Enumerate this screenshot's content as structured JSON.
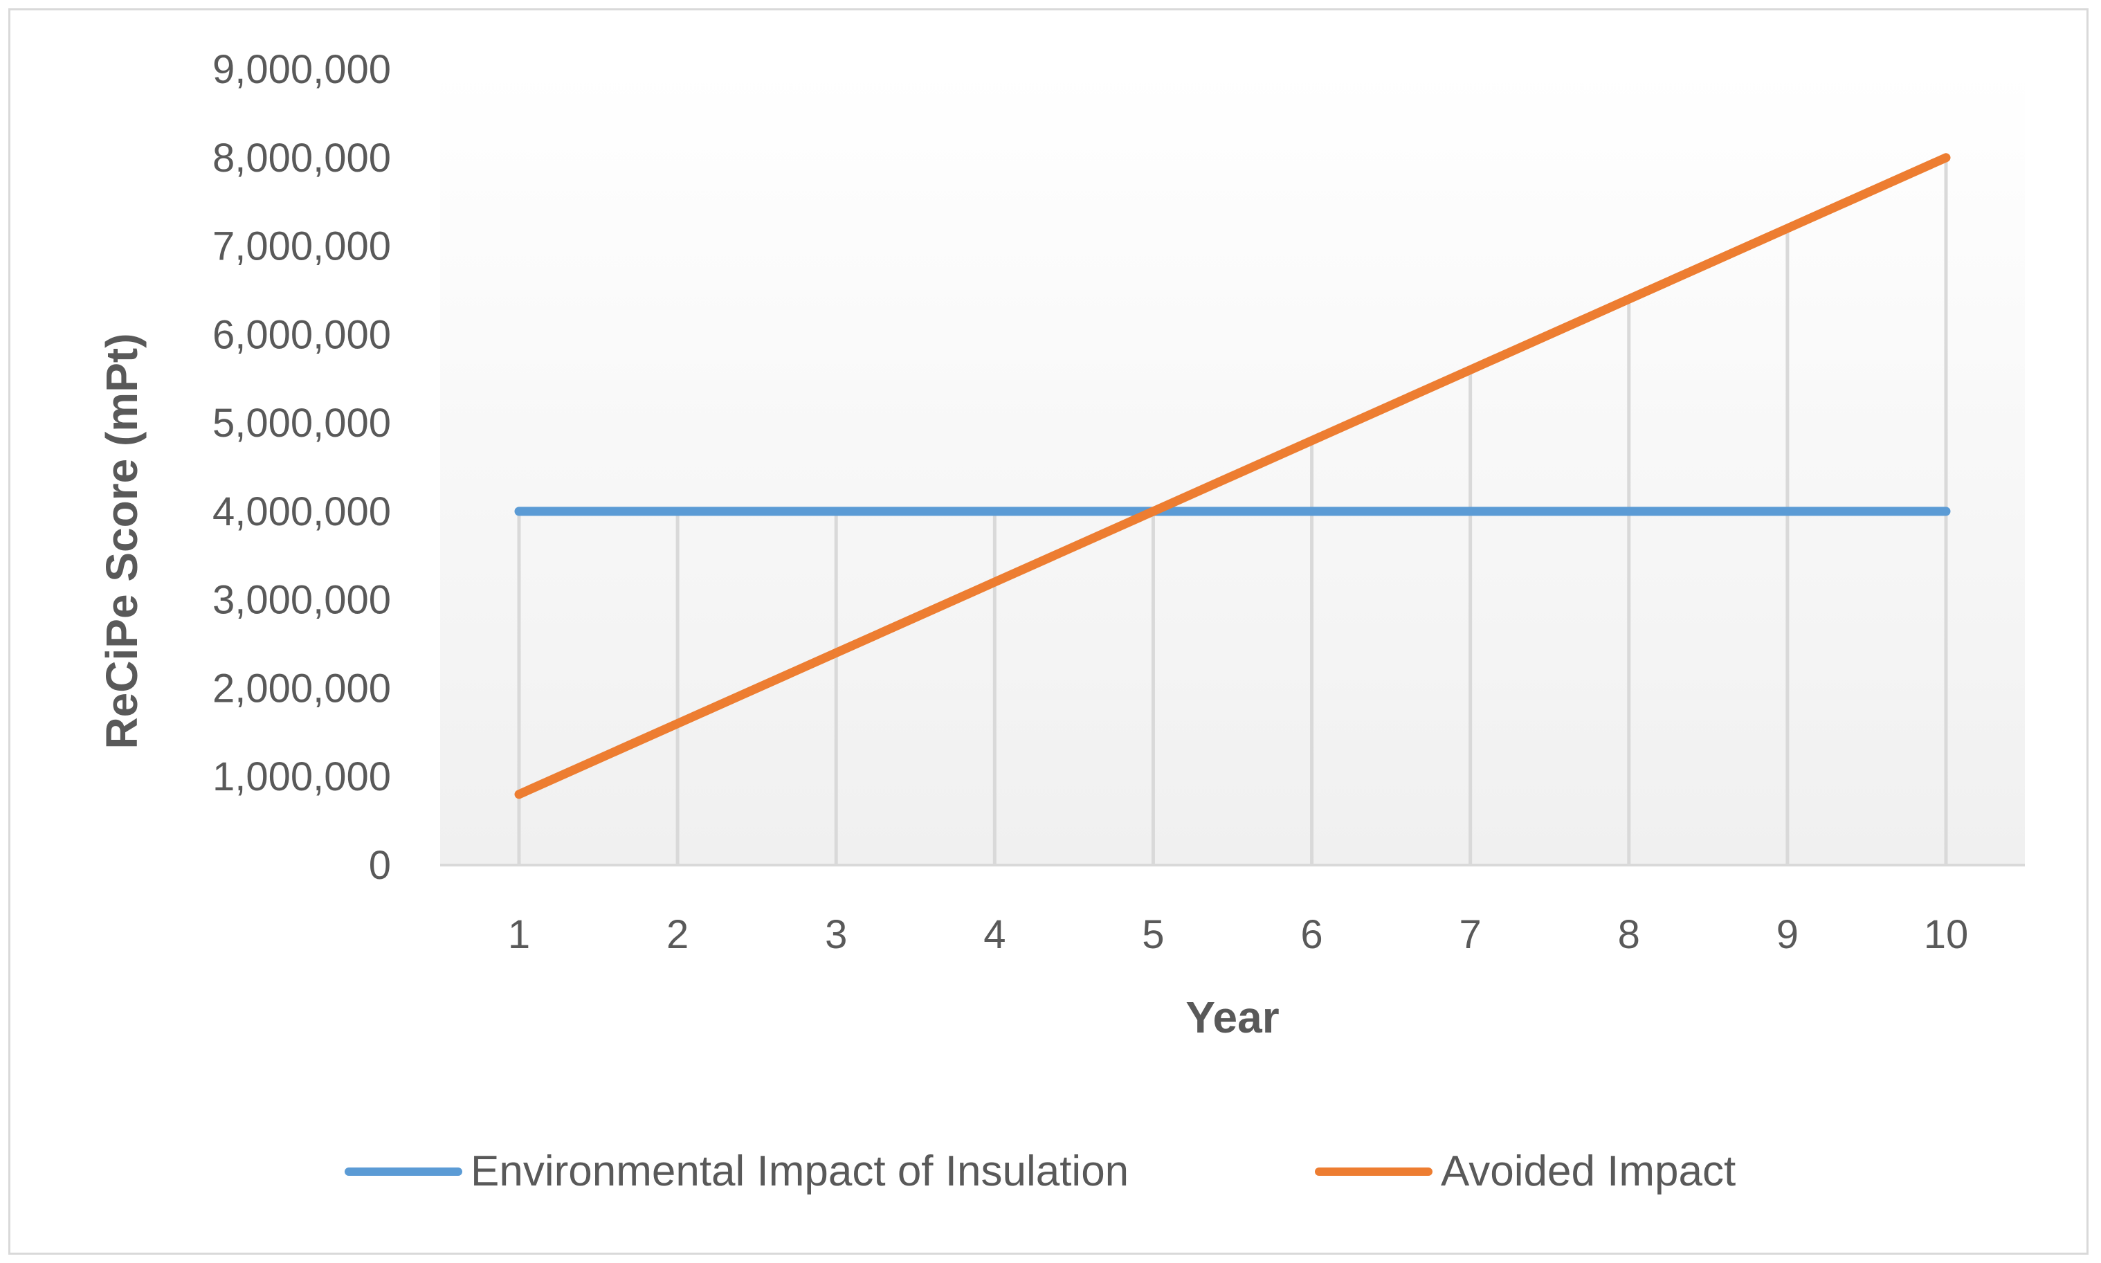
{
  "chart_data": {
    "type": "line",
    "title": "",
    "xlabel": "Year",
    "ylabel": "ReCiPe Score (mPt)",
    "categories": [
      "1",
      "2",
      "3",
      "4",
      "5",
      "6",
      "7",
      "8",
      "9",
      "10"
    ],
    "ylim": [
      0,
      9000000
    ],
    "yticks": [
      0,
      1000000,
      2000000,
      3000000,
      4000000,
      5000000,
      6000000,
      7000000,
      8000000,
      9000000
    ],
    "ytick_labels": [
      "0",
      "1,000,000",
      "2,000,000",
      "3,000,000",
      "4,000,000",
      "5,000,000",
      "6,000,000",
      "7,000,000",
      "8,000,000",
      "9,000,000"
    ],
    "grid": "vertical drop lines",
    "legend_position": "bottom",
    "series": [
      {
        "name": "Environmental Impact of Insulation",
        "color": "#5b9bd5",
        "values": [
          4000000,
          4000000,
          4000000,
          4000000,
          4000000,
          4000000,
          4000000,
          4000000,
          4000000,
          4000000
        ]
      },
      {
        "name": "Avoided Impact",
        "color": "#ed7d31",
        "values": [
          800000,
          1600000,
          2400000,
          3200000,
          4000000,
          4800000,
          5600000,
          6400000,
          7200000,
          8000000
        ]
      }
    ]
  }
}
